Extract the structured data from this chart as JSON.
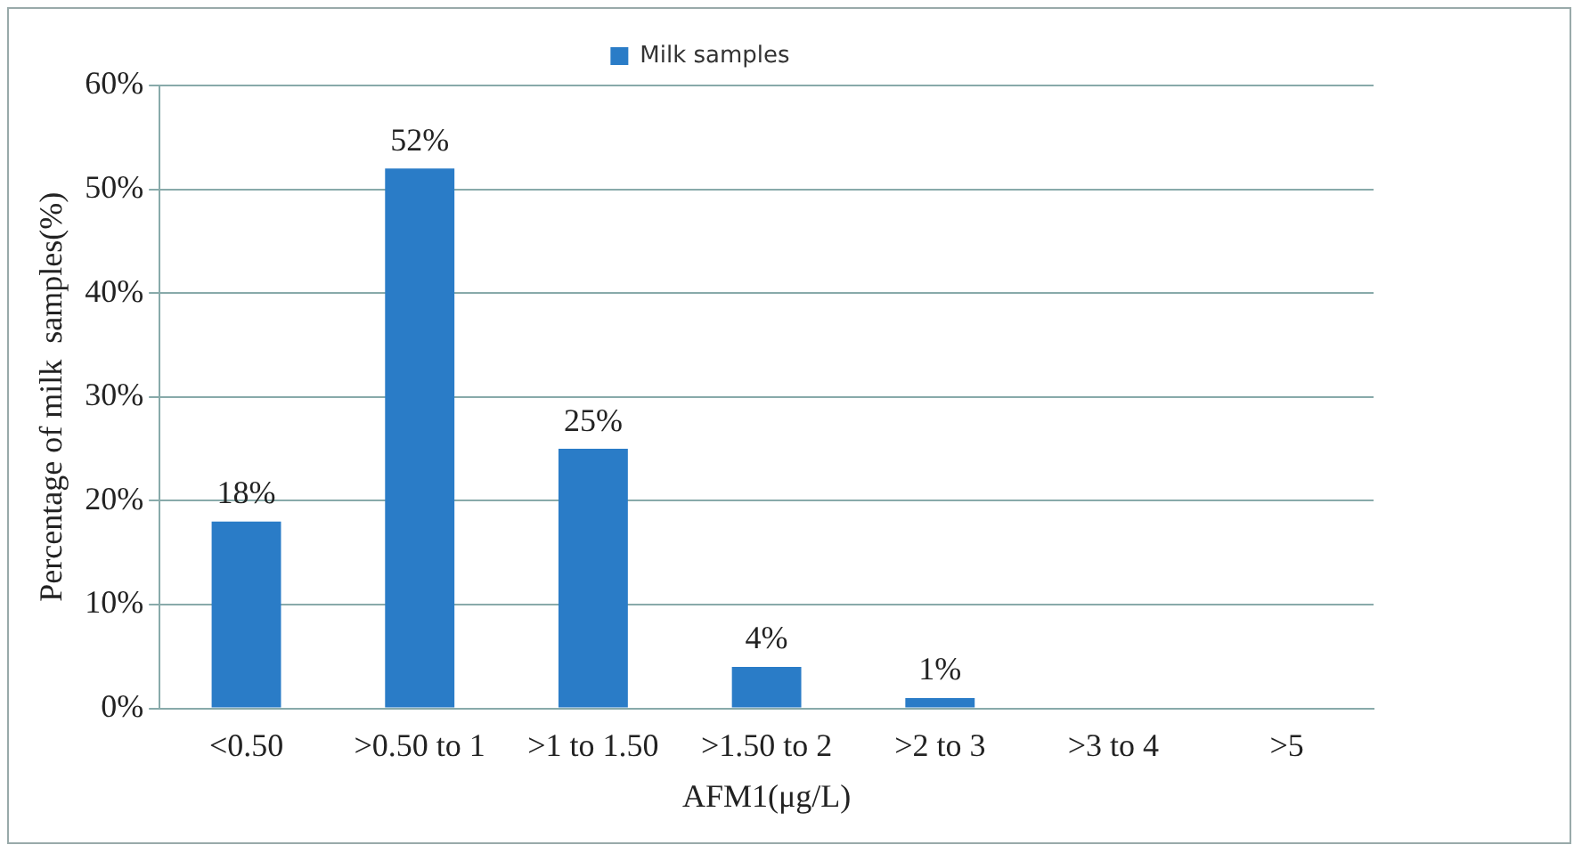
{
  "chart_data": {
    "type": "bar",
    "xlabel": "AFM1(μg/L)",
    "ylabel": "Percentage of milk  samples(%)",
    "categories": [
      "<0.50",
      ">0.50 to 1",
      ">1 to 1.50",
      ">1.50 to 2",
      ">2 to 3",
      ">3 to 4",
      ">5"
    ],
    "series": [
      {
        "name": "Milk samples",
        "color": "#2a7cc7",
        "values": [
          18,
          52,
          25,
          4,
          1,
          0,
          0
        ],
        "value_labels": [
          "18%",
          "52%",
          "25%",
          "4%",
          "1%",
          null,
          null
        ]
      }
    ],
    "ylim": [
      0,
      60
    ],
    "yticks": [
      {
        "value": 0,
        "label": "0%"
      },
      {
        "value": 10,
        "label": "10%"
      },
      {
        "value": 20,
        "label": "20%"
      },
      {
        "value": 30,
        "label": "30%"
      },
      {
        "value": 40,
        "label": "40%"
      },
      {
        "value": 50,
        "label": "50%"
      },
      {
        "value": 60,
        "label": "60%"
      }
    ],
    "grid": "y",
    "legend": "top"
  }
}
